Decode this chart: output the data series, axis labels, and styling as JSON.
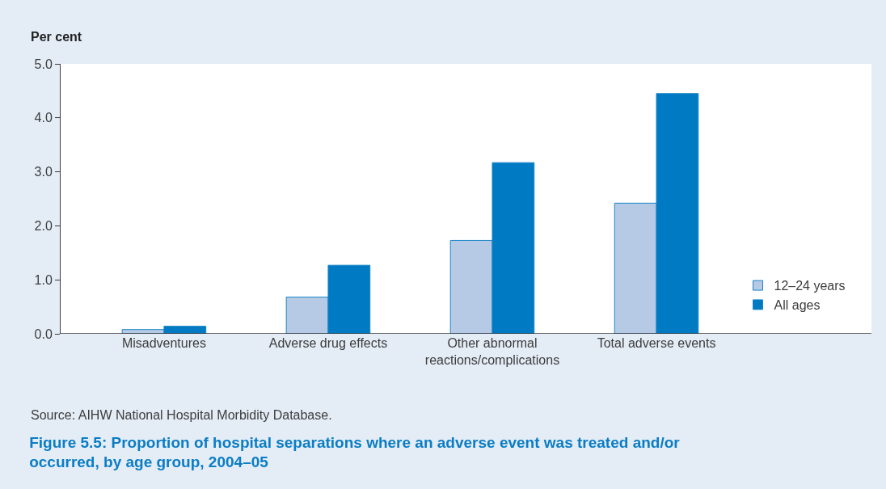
{
  "chart_data": {
    "type": "bar",
    "title": "Figure 5.5: Proportion of hospital separations where an adverse event was treated and/or\noccurred, by age group, 2004–05",
    "ylabel": "Per cent",
    "categories": [
      "Misadventures",
      "Adverse drug effects",
      "Other abnormal\nreactions/complications",
      "Total adverse events"
    ],
    "series": [
      {
        "name": "12–24 years",
        "color": "#b6cae6",
        "values": [
          0.08,
          0.68,
          1.73,
          2.42
        ]
      },
      {
        "name": "All ages",
        "color": "#007ac2",
        "values": [
          0.14,
          1.27,
          3.17,
          4.45
        ]
      }
    ],
    "ylim": [
      0,
      5
    ],
    "yticks": [
      {
        "value": 0,
        "label": "0.0"
      },
      {
        "value": 1,
        "label": "1.0"
      },
      {
        "value": 2,
        "label": "2.0"
      },
      {
        "value": 3,
        "label": "3.0"
      },
      {
        "value": 4,
        "label": "4.0"
      },
      {
        "value": 5,
        "label": "5.0"
      }
    ],
    "annotations": [
      "Source: AIHW National Hospital Morbidity Database."
    ],
    "legend": "bottom right"
  }
}
